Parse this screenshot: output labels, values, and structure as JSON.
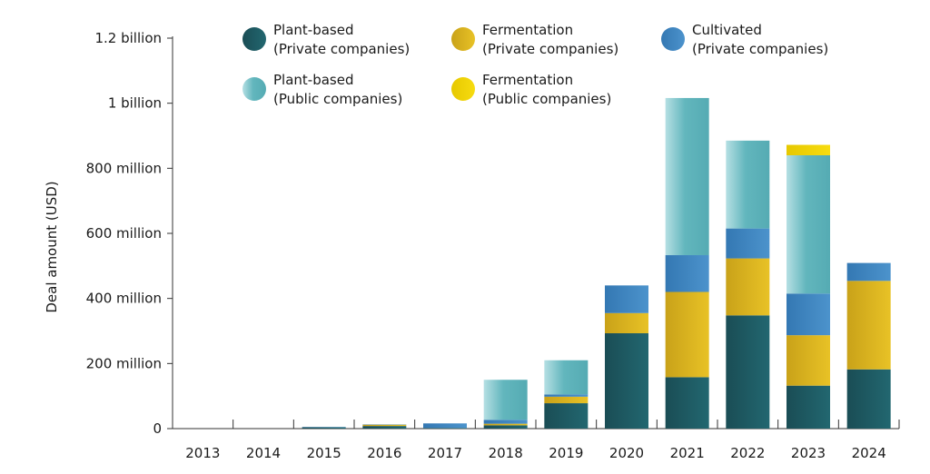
{
  "chart_data": {
    "type": "bar",
    "stacked": true,
    "title": "",
    "xlabel": "",
    "ylabel": "Deal amount (USD)",
    "ylim": [
      0,
      1200
    ],
    "categories": [
      "2013",
      "2014",
      "2015",
      "2016",
      "2017",
      "2018",
      "2019",
      "2020",
      "2021",
      "2022",
      "2023",
      "2024"
    ],
    "y_ticks": [
      {
        "value": 0,
        "label": "0"
      },
      {
        "value": 200,
        "label": "200 million"
      },
      {
        "value": 400,
        "label": "400 million"
      },
      {
        "value": 600,
        "label": "600 million"
      },
      {
        "value": 800,
        "label": "800 million"
      },
      {
        "value": 1000,
        "label": "1 billion"
      },
      {
        "value": 1200,
        "label": "1.2 billion"
      }
    ],
    "series": [
      {
        "key": "pb_private",
        "name": "Plant-based",
        "sub": "(Private companies)",
        "color": "#1e5a62",
        "values": [
          0,
          0,
          4,
          8,
          2,
          10,
          78,
          293,
          158,
          348,
          132,
          182
        ]
      },
      {
        "key": "fer_private",
        "name": "Fermentation",
        "sub": "(Private companies)",
        "color": "#e0b820",
        "values": [
          0,
          0,
          0,
          4,
          0,
          5,
          20,
          62,
          262,
          175,
          155,
          272
        ]
      },
      {
        "key": "cult_private",
        "name": "Cultivated",
        "sub": "(Private companies)",
        "color": "#3f87c2",
        "values": [
          0,
          0,
          1,
          1,
          14,
          12,
          7,
          85,
          113,
          92,
          128,
          55
        ]
      },
      {
        "key": "pb_public",
        "name": "Plant-based",
        "sub": "(Public companies)",
        "color": "#5ab2ba",
        "values": [
          0,
          0,
          0,
          0,
          0,
          123,
          105,
          0,
          483,
          270,
          425,
          0
        ]
      },
      {
        "key": "fer_public",
        "name": "Fermentation",
        "sub": "(Public companies)",
        "color": "#f0d500",
        "values": [
          0,
          0,
          0,
          0,
          0,
          0,
          0,
          0,
          0,
          0,
          32,
          0
        ]
      }
    ],
    "legend_position": "top"
  }
}
